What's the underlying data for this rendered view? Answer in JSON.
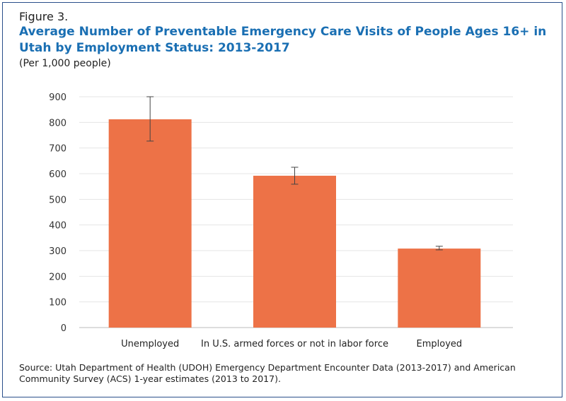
{
  "figure_label": "Figure 3.",
  "chart_data": {
    "type": "bar",
    "title": "Average Number of Preventable Emergency Care Visits of People Ages 16+ in Utah by Employment Status: 2013-2017",
    "subtitle": "(Per 1,000 people)",
    "categories": [
      "Unemployed",
      "In U.S. armed forces or not in labor force",
      "Employed"
    ],
    "values": [
      812,
      592,
      308
    ],
    "error_bars": [
      [
        727,
        900
      ],
      [
        559,
        625
      ],
      [
        303,
        317
      ]
    ],
    "ylim": [
      0,
      900
    ],
    "yticks": [
      0,
      100,
      200,
      300,
      400,
      500,
      600,
      700,
      800,
      900
    ],
    "grid": true,
    "bar_color": "#ed7247"
  },
  "source": "Source: Utah Department of Health (UDOH) Emergency Department Encounter Data (2013-2017) and American Community Survey (ACS) 1-year estimates (2013 to 2017)."
}
